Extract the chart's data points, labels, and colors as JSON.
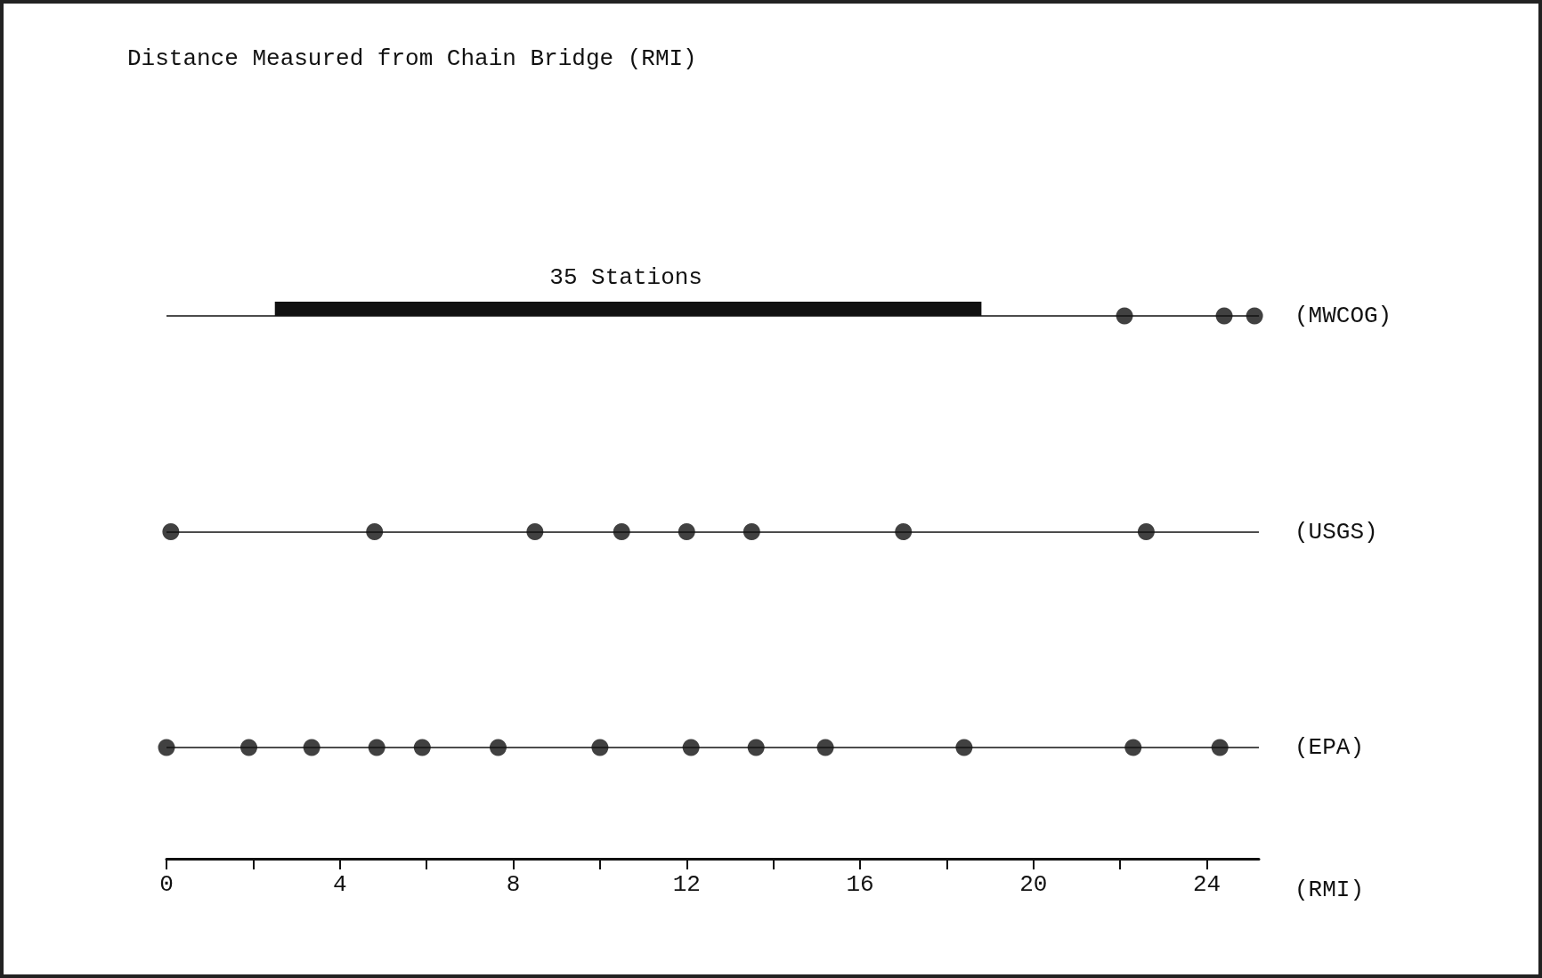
{
  "chart_data": {
    "type": "scatter",
    "orientation": "horizontal",
    "title": "Distance Measured from Chain Bridge (RMI)",
    "xlabel": "(RMI)",
    "categories": [
      "(MWCOG)",
      "(USGS)",
      "(EPA)"
    ],
    "xlim": [
      0,
      25.2
    ],
    "xticks": [
      0,
      {
        "value": 2,
        "label": null
      },
      4,
      {
        "value": 6,
        "label": null
      },
      8,
      {
        "value": 10,
        "label": null
      },
      12,
      {
        "value": 14,
        "label": null
      },
      16,
      {
        "value": 18,
        "label": null
      },
      20,
      {
        "value": 22,
        "label": null
      },
      24
    ],
    "grid": "y",
    "marker": "circle",
    "annotations": [
      {
        "text": "35 Stations",
        "x": 10.6,
        "y": "(MWCOG)"
      }
    ],
    "series": [
      {
        "type": "bar",
        "color": "#111111",
        "base": [
          2.5,
          null,
          null
        ],
        "values": [
          16.3,
          null,
          null
        ]
      },
      {
        "color": "#111111",
        "values": [
          22.1,
          0.1,
          0
        ]
      },
      {
        "color": "#111111",
        "values": [
          24.4,
          4.8,
          1.9
        ]
      },
      {
        "color": "#111111",
        "values": [
          25.1,
          8.5,
          3.35
        ]
      },
      {
        "color": "#111111",
        "values": [
          null,
          10.5,
          4.85
        ]
      },
      {
        "color": "#111111",
        "values": [
          null,
          12.0,
          5.9
        ]
      },
      {
        "color": "#111111",
        "values": [
          null,
          13.5,
          7.65
        ]
      },
      {
        "color": "#111111",
        "values": [
          null,
          17.0,
          10.0
        ]
      },
      {
        "color": "#111111",
        "values": [
          null,
          22.6,
          12.1
        ]
      },
      {
        "color": "#111111",
        "values": [
          null,
          null,
          13.6
        ]
      },
      {
        "color": "#111111",
        "values": [
          null,
          null,
          15.2
        ]
      },
      {
        "color": "#111111",
        "values": [
          null,
          null,
          18.4
        ]
      },
      {
        "color": "#111111",
        "values": [
          null,
          null,
          22.3
        ]
      },
      {
        "color": "#111111",
        "values": [
          null,
          null,
          24.3
        ]
      }
    ]
  }
}
